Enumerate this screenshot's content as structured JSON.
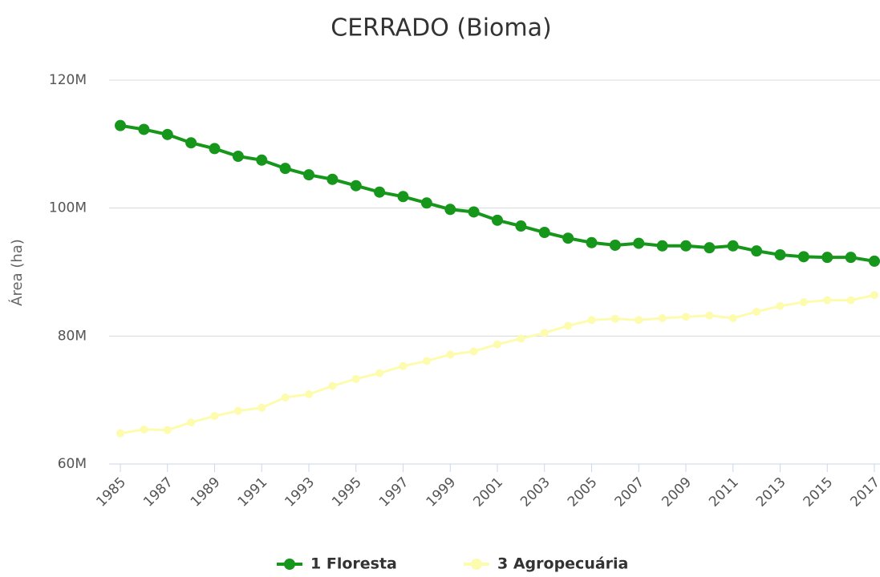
{
  "chart_data": {
    "type": "line",
    "title": "CERRADO (Bioma)",
    "y_label": "Área (ha)",
    "x": [
      1985,
      1986,
      1987,
      1988,
      1989,
      1990,
      1991,
      1992,
      1993,
      1994,
      1995,
      1996,
      1997,
      1998,
      1999,
      2000,
      2001,
      2002,
      2003,
      2004,
      2005,
      2006,
      2007,
      2008,
      2009,
      2010,
      2011,
      2012,
      2013,
      2014,
      2015,
      2016,
      2017
    ],
    "series": [
      {
        "name": "1 Floresta",
        "color": "#16961a",
        "values": [
          112900000,
          112300000,
          111500000,
          110200000,
          109300000,
          108100000,
          107500000,
          106200000,
          105200000,
          104500000,
          103500000,
          102500000,
          101800000,
          100800000,
          99800000,
          99400000,
          98100000,
          97200000,
          96200000,
          95300000,
          94600000,
          94200000,
          94500000,
          94100000,
          94100000,
          93800000,
          94100000,
          93300000,
          92700000,
          92400000,
          92300000,
          92300000,
          91700000
        ]
      },
      {
        "name": "3 Agropecuária",
        "color": "#fdfcae",
        "values": [
          64800000,
          65400000,
          65300000,
          66500000,
          67500000,
          68300000,
          68800000,
          70400000,
          70900000,
          72200000,
          73300000,
          74200000,
          75300000,
          76100000,
          77100000,
          77600000,
          78700000,
          79600000,
          80500000,
          81600000,
          82500000,
          82700000,
          82500000,
          82800000,
          83000000,
          83200000,
          82800000,
          83800000,
          84700000,
          85300000,
          85600000,
          85600000,
          86400000
        ]
      }
    ],
    "xlim": [
      1985,
      2017
    ],
    "xticks": [
      1985,
      1987,
      1989,
      1991,
      1993,
      1995,
      1997,
      1999,
      2001,
      2003,
      2005,
      2007,
      2009,
      2011,
      2013,
      2015,
      2017
    ],
    "ylim": [
      60000000,
      120000000
    ],
    "yticks": [
      {
        "value": 60000000,
        "label": "60M"
      },
      {
        "value": 80000000,
        "label": "80M"
      },
      {
        "value": 100000000,
        "label": "100M"
      },
      {
        "value": 120000000,
        "label": "120M"
      }
    ],
    "grid": true,
    "legend": "bottom"
  }
}
